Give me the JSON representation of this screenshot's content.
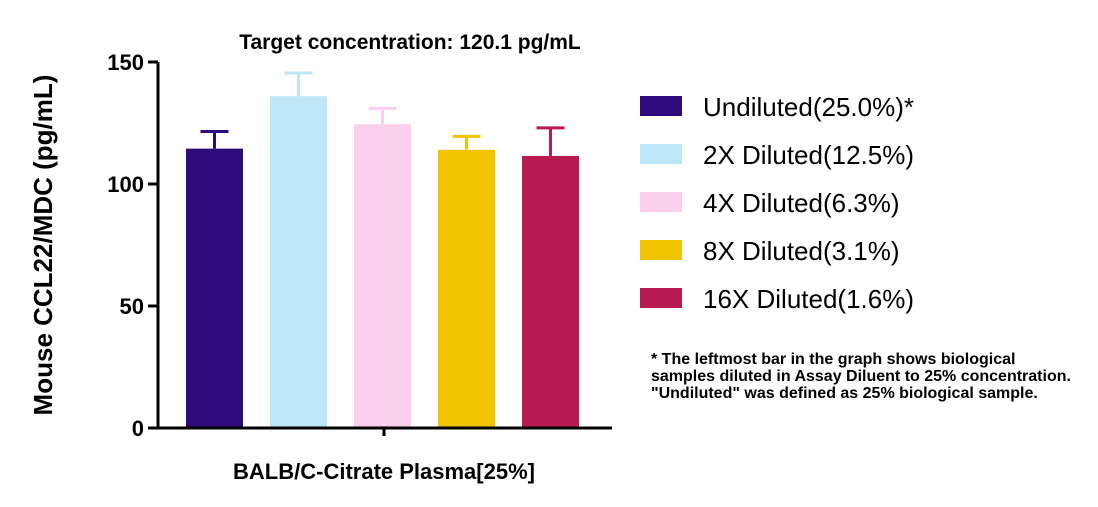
{
  "chart_data": {
    "type": "bar",
    "title": "Target concentration: 120.1 pg/mL",
    "xlabel": "BALB/C-Citrate Plasma[25%]",
    "ylabel": "Mouse CCL22/MDC (pg/mL)",
    "ylim": [
      0,
      150
    ],
    "yticks": [
      0,
      50,
      100,
      150
    ],
    "grid": false,
    "legend_position": "right",
    "series": [
      {
        "name": "Undiluted(25.0%)*",
        "value": 114.5,
        "error": 7,
        "color": "#2e0a7a"
      },
      {
        "name": "2X Diluted(12.5%)",
        "value": 136,
        "error": 9.5,
        "color": "#bde6f7"
      },
      {
        "name": "4X Diluted(6.3%)",
        "value": 124.5,
        "error": 6.5,
        "color": "#fcd0ec"
      },
      {
        "name": "8X Diluted(3.1%)",
        "value": 114,
        "error": 5.5,
        "color": "#f2c300"
      },
      {
        "name": "16X Diluted(1.6%)",
        "value": 111.5,
        "error": 11.5,
        "color": "#b81b52"
      }
    ]
  },
  "footnote": "* The leftmost bar in the graph shows biological samples diluted in Assay Diluent to 25% concentration. \"Undiluted\" was defined as 25% biological sample."
}
